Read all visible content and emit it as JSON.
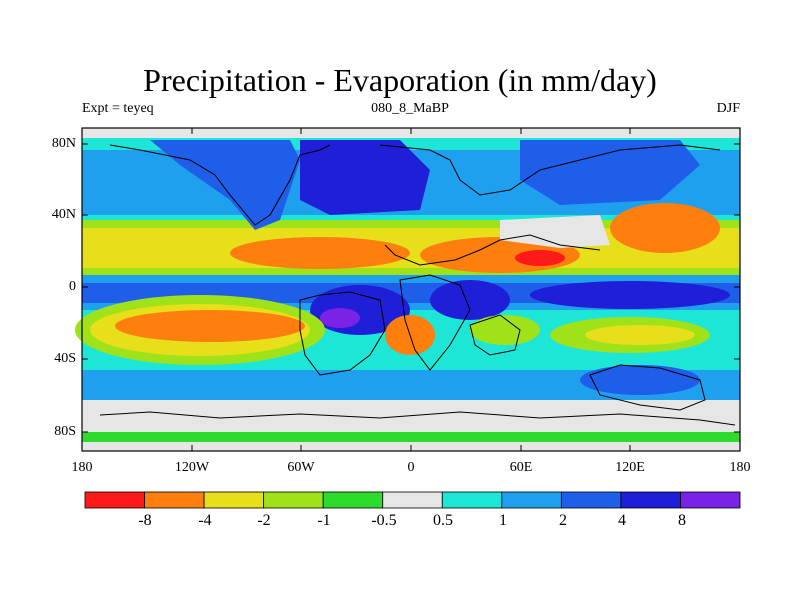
{
  "title": "Precipitation - Evaporation (in mm/day)",
  "subtitle_left": "Expt = teyeq",
  "subtitle_center": "080_8_MaBP",
  "subtitle_right": "DJF",
  "y_axis_labels": [
    "80N",
    "40N",
    "0",
    "40S",
    "80S"
  ],
  "x_axis_labels": [
    "180",
    "120W",
    "60W",
    "0",
    "60E",
    "120E",
    "180"
  ],
  "colorbar": {
    "colors": [
      "#ff1a1a",
      "#ff7f0e",
      "#e6df1a",
      "#9fe21a",
      "#2cdb2c",
      "#e6e6e6",
      "#1ee6d6",
      "#1fa0ee",
      "#1e5ee9",
      "#1f1fd8",
      "#7a22e6"
    ],
    "labels": [
      "-8",
      "-4",
      "-2",
      "-1",
      "-0.5",
      "0.5",
      "1",
      "2",
      "4",
      "8"
    ]
  },
  "map_colors": {
    "red": "#ff1a1a",
    "orange": "#ff7f0e",
    "yellow": "#e6df1a",
    "lime": "#9fe21a",
    "green": "#2cdb2c",
    "gray": "#e6e6e6",
    "cyan": "#1ee6d6",
    "sky": "#1fa0ee",
    "blue": "#1e5ee9",
    "navy": "#1f1fd8",
    "purple": "#7a22e6"
  }
}
